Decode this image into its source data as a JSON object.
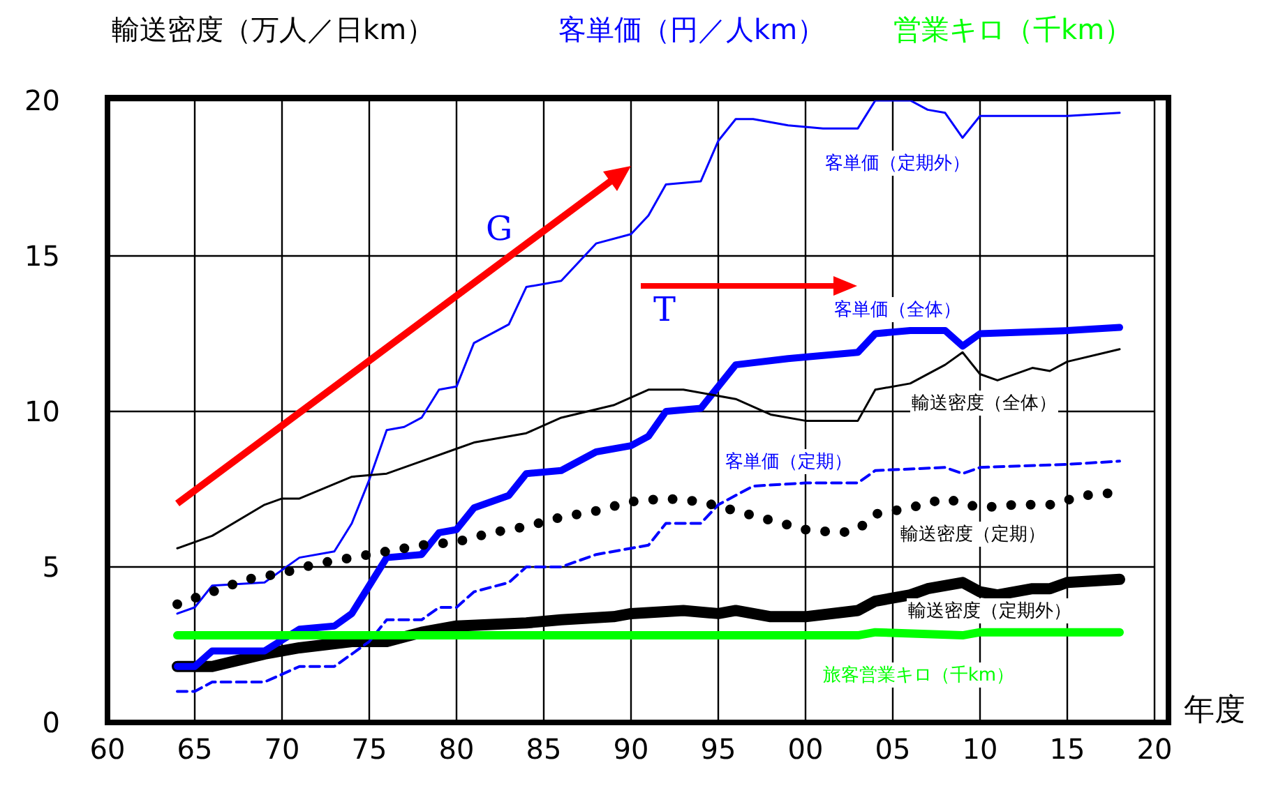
{
  "chart_data": {
    "type": "line",
    "ylabel": "輸送密度（万人／日km）",
    "xlabel": "年度",
    "annotations": [
      "客単価（円／人km）",
      "営業キロ（千km）",
      "G",
      "T"
    ],
    "xlim": [
      1960,
      2020
    ],
    "xticks": [
      {
        "value": 1960,
        "label": "60"
      },
      {
        "value": 1965,
        "label": "65"
      },
      {
        "value": 1970,
        "label": "70"
      },
      {
        "value": 1975,
        "label": "75"
      },
      {
        "value": 1980,
        "label": "80"
      },
      {
        "value": 1985,
        "label": "85"
      },
      {
        "value": 1990,
        "label": "90"
      },
      {
        "value": 1995,
        "label": "95"
      },
      {
        "value": 2000,
        "label": "00"
      },
      {
        "value": 2005,
        "label": "05"
      },
      {
        "value": 2010,
        "label": "10"
      },
      {
        "value": 2015,
        "label": "15"
      },
      {
        "value": 2020,
        "label": "20"
      }
    ],
    "ylim": [
      0,
      20
    ],
    "yticks": [
      0,
      5,
      10,
      15,
      20
    ],
    "grid": true,
    "series": [
      {
        "name": "客単価（定期外）",
        "color": "#0000ff",
        "line_style": "solid",
        "x": [
          1964,
          1965,
          1966,
          1969,
          1971,
          1973,
          1974,
          1975,
          1976,
          1977,
          1978,
          1979,
          1980,
          1981,
          1983,
          1984,
          1986,
          1988,
          1990,
          1991,
          1992,
          1994,
          1995,
          1996,
          1997,
          1999,
          2001,
          2003,
          2004,
          2006,
          2007,
          2008,
          2009,
          2010,
          2015,
          2018
        ],
        "values": [
          3.5,
          3.7,
          4.4,
          4.5,
          5.3,
          5.5,
          6.4,
          7.8,
          9.4,
          9.5,
          9.8,
          10.7,
          10.8,
          12.2,
          12.8,
          14.0,
          14.2,
          15.4,
          15.7,
          16.3,
          17.3,
          17.4,
          18.7,
          19.4,
          19.4,
          19.2,
          19.1,
          19.1,
          20.0,
          20.0,
          19.7,
          19.6,
          18.8,
          19.5,
          19.5,
          19.6
        ]
      },
      {
        "name": "輸送密度（定期外）",
        "color": "#000000",
        "line_style": "solid",
        "x": [
          1964,
          1966,
          1969,
          1970,
          1971,
          1974,
          1976,
          1978,
          1980,
          1984,
          1986,
          1989,
          1990,
          1993,
          1995,
          1996,
          1998,
          2000,
          2003,
          2004,
          2006,
          2007,
          2009,
          2010,
          2011,
          2013,
          2014,
          2015,
          2018
        ],
        "values": [
          1.8,
          1.8,
          2.2,
          2.3,
          2.4,
          2.6,
          2.6,
          2.9,
          3.1,
          3.2,
          3.3,
          3.4,
          3.5,
          3.6,
          3.5,
          3.6,
          3.4,
          3.4,
          3.6,
          3.9,
          4.1,
          4.3,
          4.5,
          4.2,
          4.1,
          4.3,
          4.3,
          4.5,
          4.6
        ]
      },
      {
        "name": "客単価（全体）",
        "color": "#0000ff",
        "line_style": "solid",
        "x": [
          1964,
          1965,
          1966,
          1969,
          1971,
          1973,
          1974,
          1975,
          1976,
          1978,
          1979,
          1980,
          1981,
          1983,
          1984,
          1986,
          1988,
          1990,
          1991,
          1992,
          1994,
          1996,
          1999,
          2003,
          2004,
          2006,
          2008,
          2009,
          2010,
          2015,
          2018
        ],
        "values": [
          1.8,
          1.8,
          2.3,
          2.3,
          3.0,
          3.1,
          3.5,
          4.4,
          5.3,
          5.4,
          6.1,
          6.2,
          6.9,
          7.3,
          8.0,
          8.1,
          8.7,
          8.9,
          9.2,
          10.0,
          10.1,
          11.5,
          11.7,
          11.9,
          12.5,
          12.6,
          12.6,
          12.1,
          12.5,
          12.6,
          12.7
        ]
      },
      {
        "name": "輸送密度（全体）",
        "color": "#000000",
        "line_style": "solid",
        "x": [
          1964,
          1966,
          1969,
          1970,
          1971,
          1974,
          1976,
          1978,
          1980,
          1981,
          1984,
          1986,
          1989,
          1991,
          1993,
          1996,
          1998,
          2000,
          2003,
          2004,
          2006,
          2008,
          2009,
          2010,
          2011,
          2013,
          2014,
          2015,
          2018
        ],
        "values": [
          5.6,
          6.0,
          7.0,
          7.2,
          7.2,
          7.9,
          8.0,
          8.4,
          8.8,
          9.0,
          9.3,
          9.8,
          10.2,
          10.7,
          10.7,
          10.4,
          9.9,
          9.7,
          9.7,
          10.7,
          10.9,
          11.5,
          11.9,
          11.2,
          11.0,
          11.4,
          11.3,
          11.6,
          12.0
        ]
      },
      {
        "name": "客単価（定期）",
        "color": "#0000ff",
        "line_style": "dashed",
        "x": [
          1964,
          1965,
          1966,
          1969,
          1971,
          1973,
          1975,
          1976,
          1978,
          1979,
          1980,
          1981,
          1983,
          1984,
          1986,
          1988,
          1990,
          1991,
          1992,
          1994,
          1995,
          1997,
          2000,
          2003,
          2004,
          2008,
          2009,
          2010,
          2015,
          2018
        ],
        "values": [
          1.0,
          1.0,
          1.3,
          1.3,
          1.8,
          1.8,
          2.6,
          3.3,
          3.3,
          3.7,
          3.7,
          4.2,
          4.5,
          5.0,
          5.0,
          5.4,
          5.6,
          5.7,
          6.4,
          6.4,
          7.0,
          7.6,
          7.7,
          7.7,
          8.1,
          8.2,
          8.0,
          8.2,
          8.3,
          8.4
        ]
      },
      {
        "name": "輸送密度（定期）",
        "color": "#000000",
        "line_style": "dotted",
        "x": [
          1964,
          1966,
          1968,
          1970,
          1972,
          1974,
          1976,
          1978,
          1980,
          1982,
          1984,
          1986,
          1988,
          1990,
          1992,
          1994,
          1996,
          1998,
          2000,
          2002,
          2003,
          2004,
          2006,
          2008,
          2010,
          2012,
          2014,
          2016,
          2018
        ],
        "values": [
          3.8,
          4.2,
          4.6,
          4.8,
          5.1,
          5.3,
          5.5,
          5.7,
          5.8,
          6.1,
          6.3,
          6.6,
          6.8,
          7.1,
          7.2,
          7.1,
          6.8,
          6.5,
          6.2,
          6.1,
          6.2,
          6.7,
          6.9,
          7.2,
          6.9,
          7.0,
          7.0,
          7.3,
          7.4
        ]
      },
      {
        "name": "旅客営業キロ（千km）",
        "color": "#00ff00",
        "line_style": "solid",
        "x": [
          1964,
          1970,
          1980,
          1986,
          1990,
          2003,
          2004,
          2009,
          2010,
          2018
        ],
        "values": [
          2.8,
          2.8,
          2.8,
          2.8,
          2.8,
          2.8,
          2.9,
          2.8,
          2.9,
          2.9
        ]
      }
    ]
  }
}
